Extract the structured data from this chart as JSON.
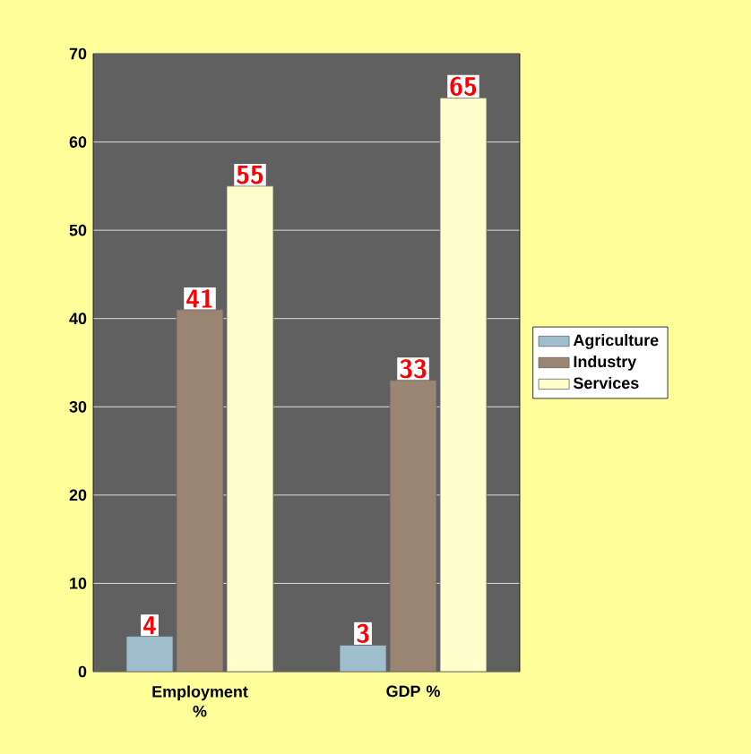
{
  "chart_data": {
    "type": "bar",
    "categories": [
      "Employment %",
      "GDP %"
    ],
    "series": [
      {
        "name": "Agriculture",
        "color": "#9fbfcf",
        "values": [
          4,
          3
        ]
      },
      {
        "name": "Industry",
        "color": "#9a8472",
        "values": [
          41,
          33
        ]
      },
      {
        "name": "Services",
        "color": "#ffffcc",
        "values": [
          55,
          65
        ]
      }
    ],
    "ylim": [
      0,
      70
    ],
    "yticks": [
      0,
      10,
      20,
      30,
      40,
      50,
      60,
      70
    ],
    "grid": "y",
    "legend": "right",
    "data_labels": true
  }
}
